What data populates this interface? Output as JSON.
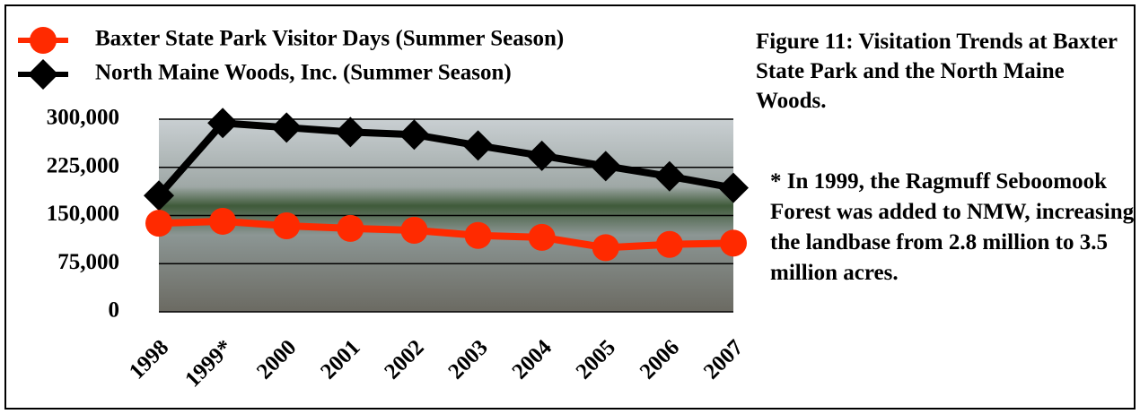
{
  "chart_data": {
    "type": "line",
    "title": "Figure 11: Visitation Trends at Baxter State Park and the North Maine Woods.",
    "annotation": "* In 1999, the Ragmuff Seboomook Forest was added to NMW, increasing the landbase from 2.8 million to 3.5 million acres.",
    "categories": [
      "1998",
      "1999*",
      "2000",
      "2001",
      "2002",
      "2003",
      "2004",
      "2005",
      "2006",
      "2007"
    ],
    "series": [
      {
        "name": "Baxter State Park Visitor Days (Summer Season)",
        "color": "#ff2a00",
        "marker": "circle",
        "values": [
          138000,
          141000,
          134000,
          130000,
          127000,
          119000,
          116000,
          100000,
          105000,
          107000
        ]
      },
      {
        "name": "North Maine Woods, Inc. (Summer Season)",
        "color": "#000000",
        "marker": "diamond",
        "values": [
          181000,
          294000,
          287000,
          280000,
          276000,
          259000,
          243000,
          227000,
          211000,
          193000
        ]
      }
    ],
    "ylim": [
      0,
      300000
    ],
    "yticks": [
      0,
      {
        "value": 75000,
        "label": "75,000"
      },
      {
        "value": 150000,
        "label": "150,000"
      },
      {
        "value": 225000,
        "label": "225,000"
      },
      {
        "value": 300000,
        "label": "300,000"
      }
    ],
    "grid": true
  }
}
